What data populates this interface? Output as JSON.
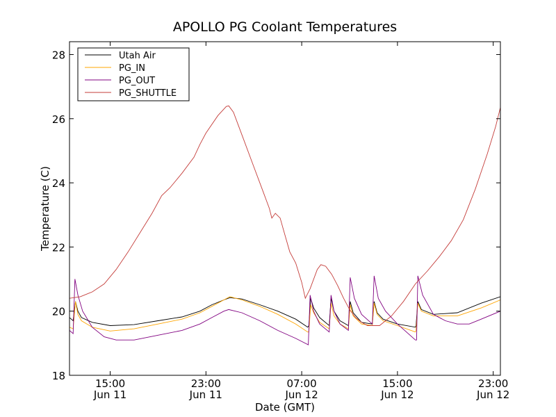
{
  "chart_data": {
    "type": "line",
    "title": "APOLLO PG Coolant Temperatures",
    "xlabel": "Date (GMT)",
    "ylabel": "Temperature (C)",
    "x_unit": "hours since Jun 11 00:00 GMT",
    "xlim": [
      11.6,
      47.6
    ],
    "ylim": [
      18,
      28.4
    ],
    "yticks": [
      18,
      20,
      22,
      24,
      26,
      28
    ],
    "xticks": [
      {
        "x": 15,
        "line1": "15:00",
        "line2": "Jun 11"
      },
      {
        "x": 23,
        "line1": "23:00",
        "line2": "Jun 11"
      },
      {
        "x": 31,
        "line1": "07:00",
        "line2": "Jun 12"
      },
      {
        "x": 39,
        "line1": "15:00",
        "line2": "Jun 12"
      },
      {
        "x": 47,
        "line1": "23:00",
        "line2": "Jun 12"
      }
    ],
    "legend_position": "top-left",
    "series": [
      {
        "name": "Utah Air",
        "color": "#000000",
        "points": [
          [
            11.6,
            19.8
          ],
          [
            11.9,
            19.7
          ],
          [
            12.1,
            20.3
          ],
          [
            12.3,
            20.0
          ],
          [
            12.6,
            19.8
          ],
          [
            13.5,
            19.65
          ],
          [
            15,
            19.55
          ],
          [
            17,
            19.58
          ],
          [
            19,
            19.7
          ],
          [
            21,
            19.82
          ],
          [
            22.5,
            20.0
          ],
          [
            23.5,
            20.2
          ],
          [
            24.5,
            20.35
          ],
          [
            25,
            20.42
          ],
          [
            26,
            20.38
          ],
          [
            27.5,
            20.2
          ],
          [
            29,
            20.0
          ],
          [
            30.5,
            19.75
          ],
          [
            31.5,
            19.5
          ],
          [
            31.6,
            19.55
          ],
          [
            31.75,
            20.4
          ],
          [
            32,
            20.1
          ],
          [
            32.5,
            19.8
          ],
          [
            33.3,
            19.55
          ],
          [
            33.45,
            20.4
          ],
          [
            33.7,
            20.0
          ],
          [
            34.2,
            19.7
          ],
          [
            34.9,
            19.55
          ],
          [
            35.05,
            20.3
          ],
          [
            35.3,
            19.95
          ],
          [
            36,
            19.65
          ],
          [
            36.9,
            19.6
          ],
          [
            37.05,
            20.3
          ],
          [
            37.3,
            19.95
          ],
          [
            37.8,
            19.75
          ],
          [
            39,
            19.6
          ],
          [
            40.5,
            19.5
          ],
          [
            40.55,
            19.55
          ],
          [
            40.7,
            20.3
          ],
          [
            41,
            20.05
          ],
          [
            42,
            19.9
          ],
          [
            44,
            19.95
          ],
          [
            46,
            20.25
          ],
          [
            47.6,
            20.45
          ]
        ]
      },
      {
        "name": "PG_IN",
        "color": "#ffa500",
        "points": [
          [
            11.6,
            19.5
          ],
          [
            11.9,
            19.45
          ],
          [
            12.1,
            20.3
          ],
          [
            12.3,
            19.9
          ],
          [
            12.6,
            19.7
          ],
          [
            13.5,
            19.5
          ],
          [
            15,
            19.38
          ],
          [
            17,
            19.45
          ],
          [
            19,
            19.6
          ],
          [
            21,
            19.75
          ],
          [
            22.5,
            19.95
          ],
          [
            23.5,
            20.15
          ],
          [
            24.5,
            20.35
          ],
          [
            25,
            20.45
          ],
          [
            26,
            20.35
          ],
          [
            27.5,
            20.15
          ],
          [
            29,
            19.9
          ],
          [
            30.5,
            19.6
          ],
          [
            31.5,
            19.35
          ],
          [
            31.6,
            19.35
          ],
          [
            31.75,
            20.2
          ],
          [
            32,
            19.95
          ],
          [
            32.5,
            19.65
          ],
          [
            33.3,
            19.45
          ],
          [
            33.45,
            20.25
          ],
          [
            33.7,
            19.85
          ],
          [
            34.2,
            19.6
          ],
          [
            34.9,
            19.45
          ],
          [
            35.05,
            20.2
          ],
          [
            35.3,
            19.85
          ],
          [
            36,
            19.6
          ],
          [
            36.9,
            19.55
          ],
          [
            37.05,
            20.25
          ],
          [
            37.3,
            19.9
          ],
          [
            37.8,
            19.7
          ],
          [
            39,
            19.55
          ],
          [
            40.5,
            19.35
          ],
          [
            40.55,
            19.4
          ],
          [
            40.7,
            20.25
          ],
          [
            41,
            20.0
          ],
          [
            42,
            19.85
          ],
          [
            44,
            19.85
          ],
          [
            46,
            20.1
          ],
          [
            47.6,
            20.35
          ]
        ]
      },
      {
        "name": "PG_OUT",
        "color": "#800080",
        "points": [
          [
            11.6,
            19.4
          ],
          [
            11.9,
            19.3
          ],
          [
            12.05,
            21.0
          ],
          [
            12.3,
            20.5
          ],
          [
            12.7,
            20.0
          ],
          [
            13.5,
            19.5
          ],
          [
            14.5,
            19.2
          ],
          [
            15.5,
            19.1
          ],
          [
            17,
            19.1
          ],
          [
            19,
            19.25
          ],
          [
            21,
            19.4
          ],
          [
            22.5,
            19.6
          ],
          [
            23.5,
            19.8
          ],
          [
            24.5,
            20.0
          ],
          [
            24.9,
            20.05
          ],
          [
            26,
            19.95
          ],
          [
            27.5,
            19.7
          ],
          [
            29,
            19.4
          ],
          [
            30.5,
            19.15
          ],
          [
            31.55,
            18.95
          ],
          [
            31.7,
            20.5
          ],
          [
            32,
            20.0
          ],
          [
            32.5,
            19.6
          ],
          [
            33.3,
            19.35
          ],
          [
            33.45,
            20.5
          ],
          [
            33.7,
            20.0
          ],
          [
            34.2,
            19.6
          ],
          [
            34.9,
            19.4
          ],
          [
            35.05,
            21.05
          ],
          [
            35.4,
            20.4
          ],
          [
            36,
            19.9
          ],
          [
            36.9,
            19.6
          ],
          [
            37.05,
            21.1
          ],
          [
            37.4,
            20.4
          ],
          [
            38,
            20.0
          ],
          [
            39,
            19.6
          ],
          [
            40.5,
            19.1
          ],
          [
            40.6,
            19.1
          ],
          [
            40.7,
            21.1
          ],
          [
            41.1,
            20.5
          ],
          [
            42,
            19.9
          ],
          [
            43,
            19.7
          ],
          [
            44,
            19.6
          ],
          [
            45,
            19.6
          ],
          [
            46,
            19.75
          ],
          [
            47.6,
            20.0
          ]
        ]
      },
      {
        "name": "PG_SHUTTLE",
        "color": "#c43c39",
        "points": [
          [
            11.6,
            20.4
          ],
          [
            12.5,
            20.45
          ],
          [
            13.5,
            20.6
          ],
          [
            14.5,
            20.85
          ],
          [
            15.5,
            21.3
          ],
          [
            16.5,
            21.85
          ],
          [
            17.5,
            22.45
          ],
          [
            18.5,
            23.05
          ],
          [
            19.3,
            23.6
          ],
          [
            20,
            23.85
          ],
          [
            21,
            24.3
          ],
          [
            22,
            24.8
          ],
          [
            22.5,
            25.2
          ],
          [
            23,
            25.55
          ],
          [
            24,
            26.1
          ],
          [
            24.7,
            26.38
          ],
          [
            24.9,
            26.4
          ],
          [
            25.3,
            26.2
          ],
          [
            26,
            25.5
          ],
          [
            27,
            24.5
          ],
          [
            27.7,
            23.8
          ],
          [
            28.3,
            23.2
          ],
          [
            28.5,
            22.9
          ],
          [
            28.8,
            23.05
          ],
          [
            29.2,
            22.9
          ],
          [
            29.5,
            22.5
          ],
          [
            30,
            21.85
          ],
          [
            30.5,
            21.5
          ],
          [
            31,
            20.9
          ],
          [
            31.3,
            20.4
          ],
          [
            31.7,
            20.7
          ],
          [
            32.3,
            21.3
          ],
          [
            32.6,
            21.45
          ],
          [
            33,
            21.4
          ],
          [
            33.5,
            21.15
          ],
          [
            34,
            20.8
          ],
          [
            34.5,
            20.4
          ],
          [
            35,
            20.05
          ],
          [
            35.5,
            19.8
          ],
          [
            36,
            19.65
          ],
          [
            36.5,
            19.55
          ],
          [
            37.5,
            19.55
          ],
          [
            38.5,
            19.85
          ],
          [
            39.5,
            20.3
          ],
          [
            40.5,
            20.85
          ],
          [
            41.5,
            21.25
          ],
          [
            42.5,
            21.7
          ],
          [
            43.5,
            22.2
          ],
          [
            44.5,
            22.85
          ],
          [
            45.5,
            23.8
          ],
          [
            46.5,
            24.9
          ],
          [
            47.2,
            25.75
          ],
          [
            47.6,
            26.35
          ]
        ]
      }
    ]
  }
}
